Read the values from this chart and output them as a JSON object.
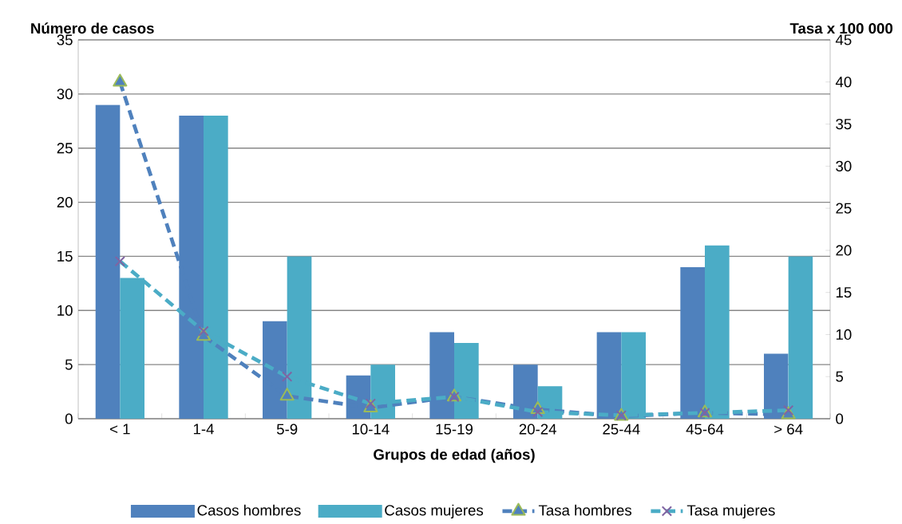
{
  "chart_data": {
    "type": "bar",
    "xlabel": "Grupos de edad (años)",
    "ylabel": "Número de casos",
    "y2label": "Tasa x 100 000",
    "categories": [
      "< 1",
      "1-4",
      "5-9",
      "10-14",
      "15-19",
      "20-24",
      "25-44",
      "45-64",
      "> 64"
    ],
    "series": [
      {
        "name": "Casos hombres",
        "color": "#4f81bd",
        "values": [
          29,
          28,
          9,
          4,
          8,
          5,
          8,
          14,
          6
        ]
      },
      {
        "name": "Casos mujeres",
        "color": "#4bacc6",
        "values": [
          13,
          28,
          15,
          5,
          7,
          3,
          8,
          16,
          15
        ]
      },
      {
        "name": "Tasa hombres",
        "type": "line",
        "axis": "y2",
        "color": "#4f81bd",
        "marker": "triangle",
        "line_style": "dashed",
        "values": [
          40.0,
          9.8,
          2.7,
          1.3,
          2.6,
          1.1,
          0.3,
          0.7,
          0.5
        ]
      },
      {
        "name": "Tasa mujeres",
        "type": "line",
        "axis": "y2",
        "color": "#4bacc6",
        "marker": "cross",
        "line_style": "dashed",
        "values": [
          18.7,
          10.4,
          5.0,
          1.8,
          2.6,
          0.8,
          0.4,
          0.7,
          1.0
        ]
      }
    ],
    "ylim": [
      0,
      35
    ],
    "yticks": [
      0,
      5,
      10,
      15,
      20,
      25,
      30,
      35
    ],
    "y2lim": [
      0,
      45
    ],
    "y2ticks": [
      0,
      5,
      10,
      15,
      20,
      25,
      30,
      35,
      40,
      45
    ],
    "grid": "y",
    "legend": "bottom"
  }
}
